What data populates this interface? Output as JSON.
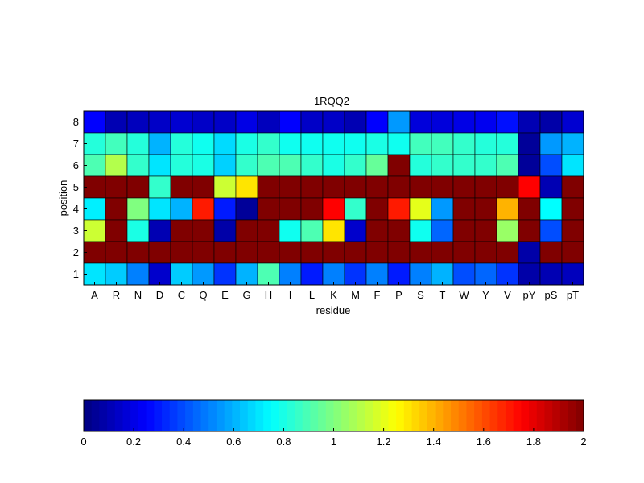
{
  "chart_data": {
    "type": "heatmap",
    "title": "1RQQ2",
    "xlabel": "residue",
    "ylabel": "position",
    "x_categories": [
      "A",
      "R",
      "N",
      "D",
      "C",
      "Q",
      "E",
      "G",
      "H",
      "I",
      "L",
      "K",
      "M",
      "F",
      "P",
      "S",
      "T",
      "W",
      "Y",
      "V",
      "pY",
      "pS",
      "pT"
    ],
    "y_categories": [
      "8",
      "7",
      "6",
      "5",
      "4",
      "3",
      "2",
      "1"
    ],
    "rows": [
      {
        "position": "8",
        "values": [
          0.25,
          0.1,
          0.12,
          0.14,
          0.16,
          0.14,
          0.14,
          0.2,
          0.12,
          0.25,
          0.14,
          0.14,
          0.1,
          0.25,
          0.55,
          0.18,
          0.18,
          0.2,
          0.22,
          0.28,
          0.1,
          0.08,
          0.16
        ]
      },
      {
        "position": "7",
        "values": [
          0.82,
          0.88,
          0.82,
          0.6,
          0.82,
          0.78,
          0.68,
          0.8,
          0.85,
          0.78,
          0.78,
          0.78,
          0.78,
          0.8,
          0.78,
          0.88,
          0.88,
          0.85,
          0.82,
          0.82,
          0.05,
          0.55,
          0.6
        ]
      },
      {
        "position": "6",
        "values": [
          0.9,
          1.1,
          0.85,
          0.7,
          0.82,
          0.8,
          0.66,
          0.85,
          0.9,
          0.9,
          0.85,
          0.8,
          0.85,
          0.95,
          2.0,
          0.82,
          0.85,
          0.85,
          0.85,
          0.9,
          0.05,
          0.4,
          0.7
        ]
      },
      {
        "position": "5",
        "values": [
          2.0,
          2.0,
          2.0,
          0.85,
          2.0,
          2.0,
          1.15,
          1.3,
          2.0,
          2.0,
          2.0,
          2.0,
          2.0,
          2.0,
          2.0,
          2.0,
          2.0,
          2.0,
          2.0,
          2.0,
          1.75,
          0.1,
          2.0
        ]
      },
      {
        "position": "4",
        "values": [
          0.72,
          2.0,
          1.0,
          0.7,
          0.6,
          1.7,
          0.3,
          0.05,
          2.0,
          2.0,
          2.0,
          1.75,
          0.85,
          2.0,
          1.7,
          1.2,
          0.55,
          2.0,
          2.0,
          1.4,
          2.0,
          0.75,
          2.0
        ]
      },
      {
        "position": "3",
        "values": [
          1.15,
          2.0,
          0.8,
          0.1,
          2.0,
          2.0,
          0.08,
          2.0,
          2.0,
          0.78,
          0.9,
          1.3,
          0.15,
          2.0,
          2.0,
          0.78,
          0.45,
          2.0,
          2.0,
          1.05,
          2.0,
          0.4,
          2.0
        ]
      },
      {
        "position": "2",
        "values": [
          2.0,
          2.0,
          2.0,
          2.0,
          2.0,
          2.0,
          2.0,
          2.0,
          2.0,
          2.0,
          2.0,
          2.0,
          2.0,
          2.0,
          2.0,
          2.0,
          2.0,
          2.0,
          2.0,
          2.0,
          0.08,
          2.0,
          2.0
        ]
      },
      {
        "position": "1",
        "values": [
          0.7,
          0.65,
          0.5,
          0.15,
          0.65,
          0.55,
          0.35,
          0.6,
          0.9,
          0.5,
          0.3,
          0.5,
          0.35,
          0.5,
          0.3,
          0.5,
          0.6,
          0.4,
          0.45,
          0.35,
          0.08,
          0.1,
          0.12
        ]
      }
    ],
    "colorbar": {
      "colormap": "jet",
      "range": [
        0,
        2
      ],
      "ticks": [
        0,
        0.2,
        0.4,
        0.6,
        0.8,
        1,
        1.2,
        1.4,
        1.6,
        1.8,
        2
      ],
      "tick_labels": [
        "0",
        "0.2",
        "0.4",
        "0.6",
        "0.8",
        "1",
        "1.2",
        "1.4",
        "1.6",
        "1.8",
        "2"
      ],
      "orientation": "horizontal",
      "placement": "bottom"
    },
    "grid": false
  }
}
